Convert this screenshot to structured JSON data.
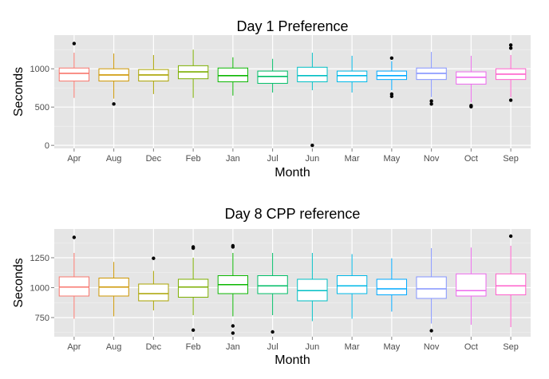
{
  "chart_data": [
    {
      "type": "boxplot",
      "title": "Day 1 Preference",
      "xlabel": "Month",
      "ylabel": "Seconds",
      "ylim": [
        -40,
        1440
      ],
      "yticks": [
        0,
        500,
        1000
      ],
      "ytick_labels": [
        "0",
        "500",
        "1000"
      ],
      "grid": true,
      "legend": "none",
      "categories": [
        "Apr",
        "Aug",
        "Dec",
        "Feb",
        "Jan",
        "Jul",
        "Jun",
        "Mar",
        "May",
        "Nov",
        "Oct",
        "Sep"
      ],
      "colors": [
        "#F8766D",
        "#CD9600",
        "#AAA300",
        "#7CAE00",
        "#0CB702",
        "#00BE67",
        "#00BFC4",
        "#00B8E7",
        "#00A9FF",
        "#8494FF",
        "#ED68ED",
        "#FF61CC"
      ],
      "boxes": [
        {
          "whisker_low": 620,
          "q1": 840,
          "median": 940,
          "q3": 1010,
          "whisker_high": 1210,
          "outliers": [
            1330
          ]
        },
        {
          "whisker_low": 610,
          "q1": 840,
          "median": 920,
          "q3": 1000,
          "whisker_high": 1200,
          "outliers": [
            540
          ]
        },
        {
          "whisker_low": 670,
          "q1": 840,
          "median": 920,
          "q3": 990,
          "whisker_high": 1180,
          "outliers": []
        },
        {
          "whisker_low": 620,
          "q1": 870,
          "median": 960,
          "q3": 1040,
          "whisker_high": 1250,
          "outliers": []
        },
        {
          "whisker_low": 650,
          "q1": 830,
          "median": 910,
          "q3": 1010,
          "whisker_high": 1150,
          "outliers": []
        },
        {
          "whisker_low": 690,
          "q1": 810,
          "median": 900,
          "q3": 970,
          "whisker_high": 1130,
          "outliers": []
        },
        {
          "whisker_low": 720,
          "q1": 830,
          "median": 910,
          "q3": 1020,
          "whisker_high": 1210,
          "outliers": [
            0
          ]
        },
        {
          "whisker_low": 690,
          "q1": 830,
          "median": 910,
          "q3": 970,
          "whisker_high": 1170,
          "outliers": []
        },
        {
          "whisker_low": 720,
          "q1": 860,
          "median": 910,
          "q3": 970,
          "whisker_high": 1100,
          "outliers": [
            640,
            670,
            1140
          ]
        },
        {
          "whisker_low": 630,
          "q1": 860,
          "median": 940,
          "q3": 1010,
          "whisker_high": 1220,
          "outliers": [
            540,
            580
          ]
        },
        {
          "whisker_low": 560,
          "q1": 800,
          "median": 890,
          "q3": 960,
          "whisker_high": 1170,
          "outliers": [
            505,
            520
          ]
        },
        {
          "whisker_low": 630,
          "q1": 860,
          "median": 930,
          "q3": 1000,
          "whisker_high": 1180,
          "outliers": [
            590,
            1270,
            1310
          ]
        }
      ]
    },
    {
      "type": "boxplot",
      "title": "Day 8  CPP reference",
      "xlabel": "Month",
      "ylabel": "Seconds",
      "ylim": [
        590,
        1490
      ],
      "yticks": [
        750,
        1000,
        1250
      ],
      "ytick_labels": [
        "750",
        "1000",
        "1250"
      ],
      "grid": true,
      "legend": "none",
      "categories": [
        "Apr",
        "Aug",
        "Dec",
        "Feb",
        "Jan",
        "Jul",
        "Jun",
        "Mar",
        "May",
        "Nov",
        "Oct",
        "Sep"
      ],
      "colors": [
        "#F8766D",
        "#CD9600",
        "#AAA300",
        "#7CAE00",
        "#0CB702",
        "#00BE67",
        "#00BFC4",
        "#00B8E7",
        "#00A9FF",
        "#8494FF",
        "#ED68ED",
        "#FF61CC"
      ],
      "boxes": [
        {
          "whisker_low": 740,
          "q1": 930,
          "median": 1005,
          "q3": 1090,
          "whisker_high": 1290,
          "outliers": [
            1420
          ]
        },
        {
          "whisker_low": 760,
          "q1": 930,
          "median": 1005,
          "q3": 1080,
          "whisker_high": 1215,
          "outliers": []
        },
        {
          "whisker_low": 810,
          "q1": 890,
          "median": 950,
          "q3": 1030,
          "whisker_high": 1140,
          "outliers": [
            1245
          ]
        },
        {
          "whisker_low": 770,
          "q1": 920,
          "median": 1005,
          "q3": 1070,
          "whisker_high": 1250,
          "outliers": [
            645,
            1330,
            1340
          ]
        },
        {
          "whisker_low": 760,
          "q1": 950,
          "median": 1025,
          "q3": 1100,
          "whisker_high": 1290,
          "outliers": [
            620,
            680,
            1340,
            1350
          ]
        },
        {
          "whisker_low": 770,
          "q1": 950,
          "median": 1015,
          "q3": 1100,
          "whisker_high": 1290,
          "outliers": [
            630
          ]
        },
        {
          "whisker_low": 720,
          "q1": 890,
          "median": 975,
          "q3": 1070,
          "whisker_high": 1290,
          "outliers": []
        },
        {
          "whisker_low": 740,
          "q1": 950,
          "median": 1015,
          "q3": 1100,
          "whisker_high": 1280,
          "outliers": []
        },
        {
          "whisker_low": 800,
          "q1": 940,
          "median": 990,
          "q3": 1070,
          "whisker_high": 1245,
          "outliers": []
        },
        {
          "whisker_low": 700,
          "q1": 910,
          "median": 990,
          "q3": 1090,
          "whisker_high": 1330,
          "outliers": [
            640
          ]
        },
        {
          "whisker_low": 690,
          "q1": 930,
          "median": 975,
          "q3": 1115,
          "whisker_high": 1335,
          "outliers": []
        },
        {
          "whisker_low": 670,
          "q1": 940,
          "median": 1015,
          "q3": 1115,
          "whisker_high": 1350,
          "outliers": [
            1430
          ]
        }
      ]
    }
  ]
}
